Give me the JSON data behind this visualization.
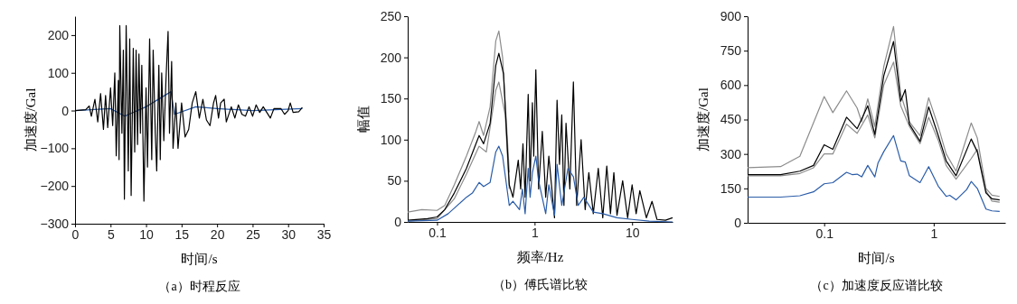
{
  "chart_data": [
    {
      "type": "line",
      "title": "（a）时程反应",
      "xlabel": "时间/s",
      "ylabel": "加速度/Gal",
      "xlim": [
        0,
        35
      ],
      "xticks": [
        0,
        5,
        10,
        15,
        20,
        25,
        30,
        35
      ],
      "ylim": [
        -300,
        250
      ],
      "yticks": [
        {
          "value": -300,
          "label": "−300"
        },
        {
          "value": -200,
          "label": "−200"
        },
        {
          "value": -100,
          "label": "−100"
        },
        0,
        100,
        200
      ],
      "grid": false,
      "series": [
        {
          "color": "#2a5ca8",
          "x": [
            0,
            5,
            7,
            10,
            13.5,
            14,
            17,
            20,
            25,
            32
          ],
          "values": [
            0,
            5,
            -15,
            10,
            50,
            -10,
            10,
            5,
            0,
            5
          ]
        },
        {
          "color": "#000000",
          "x": [
            0,
            1.5,
            2,
            2.3,
            2.8,
            3.2,
            3.6,
            4,
            4.3,
            4.6,
            5,
            5.3,
            5.6,
            5.8,
            6.1,
            6.2,
            6.3,
            6.6,
            6.8,
            6.95,
            7.2,
            7.5,
            7.7,
            7.9,
            8.2,
            8.4,
            8.6,
            8.8,
            9.0,
            9.2,
            9.4,
            9.7,
            10.0,
            10.2,
            10.5,
            10.8,
            11.0,
            11.3,
            11.5,
            11.8,
            12.0,
            12.2,
            12.5,
            12.8,
            13.1,
            13.3,
            13.6,
            13.8,
            14.2,
            14.5,
            15,
            15.5,
            16,
            16.5,
            17,
            17.5,
            18,
            18.5,
            19,
            19.5,
            19.8,
            20.2,
            20.5,
            21,
            21.3,
            22,
            22.5,
            23,
            23.5,
            24,
            24.5,
            25,
            25.5,
            26,
            26.5,
            27,
            27.5,
            28,
            29,
            29.5,
            30,
            30.3,
            30.7,
            31.5,
            32
          ],
          "values": [
            0,
            2,
            12,
            -15,
            30,
            -30,
            45,
            -50,
            40,
            -45,
            60,
            -40,
            100,
            -120,
            80,
            -130,
            225,
            -60,
            160,
            -235,
            225,
            -160,
            190,
            -225,
            165,
            -110,
            160,
            -90,
            150,
            -60,
            120,
            -240,
            60,
            -150,
            190,
            -130,
            160,
            -60,
            -160,
            120,
            -130,
            100,
            -80,
            80,
            210,
            -60,
            130,
            -100,
            20,
            -100,
            20,
            -70,
            -50,
            20,
            50,
            -20,
            30,
            -25,
            -40,
            20,
            40,
            -20,
            20,
            30,
            -30,
            10,
            -20,
            15,
            -10,
            -15,
            10,
            -15,
            15,
            -5,
            10,
            -5,
            -20,
            5,
            5,
            -10,
            0,
            20,
            -5,
            -3,
            8
          ]
        }
      ]
    },
    {
      "type": "line",
      "title": "（b）傅氏谱比较",
      "xlabel": "频率/Hz",
      "ylabel": "幅值",
      "log": "x",
      "xlim": [
        0.05,
        26
      ],
      "xticks": [
        0.1,
        1,
        10
      ],
      "ylim": [
        0,
        250
      ],
      "yticks": [
        0,
        50,
        100,
        150,
        200,
        250
      ],
      "grid": false,
      "series": [
        {
          "color": "#8c8c8c",
          "x": [
            0.05,
            0.07,
            0.1,
            0.12,
            0.15,
            0.2,
            0.25,
            0.27,
            0.3,
            0.35,
            0.4,
            0.43,
            0.47,
            0.55
          ],
          "values": [
            12,
            15,
            14,
            20,
            45,
            80,
            110,
            122,
            105,
            140,
            220,
            232,
            200,
            60
          ]
        },
        {
          "color": "#8c8c8c",
          "x": [
            0.05,
            0.1,
            0.15,
            0.2,
            0.27,
            0.32,
            0.4,
            0.43,
            0.5,
            0.55
          ],
          "values": [
            1,
            4,
            28,
            58,
            92,
            85,
            160,
            170,
            130,
            40
          ]
        },
        {
          "color": "#000000",
          "x": [
            0.05,
            0.08,
            0.1,
            0.12,
            0.15,
            0.2,
            0.27,
            0.3,
            0.35,
            0.4,
            0.43,
            0.48,
            0.55,
            0.6,
            0.68,
            0.72,
            0.76,
            0.8,
            0.86,
            0.9,
            0.95,
            0.98,
            1.03,
            1.1,
            1.2,
            1.3,
            1.4,
            1.6,
            1.7,
            1.8,
            1.9,
            2.0,
            2.1,
            2.3,
            2.5,
            2.7,
            3.0,
            3.3,
            3.6,
            4,
            4.5,
            5,
            5.5,
            6,
            6.5,
            7,
            8,
            9,
            10,
            11,
            12,
            14,
            16,
            18,
            22,
            26
          ],
          "values": [
            2,
            4,
            6,
            15,
            35,
            65,
            105,
            95,
            120,
            190,
            205,
            180,
            45,
            30,
            75,
            40,
            95,
            30,
            155,
            50,
            145,
            80,
            185,
            40,
            110,
            30,
            80,
            5,
            148,
            70,
            130,
            20,
            120,
            40,
            170,
            20,
            100,
            15,
            60,
            10,
            65,
            5,
            68,
            10,
            60,
            8,
            50,
            5,
            45,
            10,
            38,
            5,
            25,
            3,
            2,
            5
          ]
        },
        {
          "color": "#2a5ca8",
          "x": [
            0.05,
            0.1,
            0.13,
            0.2,
            0.23,
            0.27,
            0.3,
            0.35,
            0.4,
            0.43,
            0.47,
            0.55,
            0.6,
            0.7,
            0.75,
            0.8,
            0.86,
            0.9,
            0.95,
            1.03,
            1.1,
            1.3,
            1.4,
            1.6,
            1.7,
            1.9,
            2.2,
            2.5,
            2.8,
            3.2,
            4,
            5,
            7,
            10,
            15,
            26
          ],
          "values": [
            1,
            2,
            10,
            30,
            35,
            48,
            43,
            48,
            85,
            92,
            80,
            20,
            25,
            15,
            40,
            10,
            65,
            30,
            60,
            80,
            50,
            10,
            45,
            8,
            70,
            20,
            65,
            55,
            20,
            30,
            12,
            10,
            5,
            3,
            1,
            0
          ]
        }
      ]
    },
    {
      "type": "line",
      "title": "（c）加速度反应谱比较",
      "xlabel": "时间/s",
      "ylabel": "加速度/Gal",
      "log": "x",
      "xlim": [
        0.02,
        4.5
      ],
      "xticks": [
        0.1,
        1
      ],
      "ylim": [
        0,
        900
      ],
      "yticks": [
        0,
        150,
        300,
        450,
        600,
        750,
        900
      ],
      "grid": false,
      "series": [
        {
          "color": "#8c8c8c",
          "x": [
            0.02,
            0.04,
            0.06,
            0.1,
            0.12,
            0.16,
            0.2,
            0.22,
            0.25,
            0.29,
            0.35,
            0.43,
            0.5,
            0.6,
            0.75,
            0.9,
            1.1,
            1.3,
            1.6,
            2.2,
            2.5,
            3.0,
            3.4,
            4
          ],
          "values": [
            240,
            245,
            290,
            550,
            480,
            575,
            500,
            440,
            540,
            420,
            680,
            855,
            560,
            440,
            380,
            545,
            420,
            300,
            225,
            435,
            370,
            150,
            120,
            115
          ]
        },
        {
          "color": "#8c8c8c",
          "x": [
            0.02,
            0.04,
            0.06,
            0.08,
            0.1,
            0.12,
            0.16,
            0.2,
            0.25,
            0.29,
            0.35,
            0.43,
            0.5,
            0.6,
            0.75,
            0.9,
            1.1,
            1.3,
            1.6,
            2.2,
            2.5,
            3.0,
            3.4,
            4
          ],
          "values": [
            205,
            205,
            215,
            240,
            300,
            300,
            430,
            390,
            470,
            370,
            600,
            700,
            510,
            420,
            345,
            460,
            360,
            250,
            190,
            280,
            320,
            140,
            95,
            90
          ]
        },
        {
          "color": "#000000",
          "x": [
            0.02,
            0.04,
            0.06,
            0.08,
            0.1,
            0.12,
            0.16,
            0.2,
            0.25,
            0.29,
            0.35,
            0.43,
            0.5,
            0.55,
            0.6,
            0.75,
            0.9,
            1.1,
            1.3,
            1.6,
            2.2,
            2.5,
            3.0,
            3.4,
            4
          ],
          "values": [
            210,
            210,
            225,
            250,
            340,
            320,
            460,
            410,
            510,
            385,
            640,
            790,
            530,
            580,
            430,
            355,
            505,
            380,
            270,
            205,
            365,
            310,
            130,
            105,
            100
          ]
        },
        {
          "color": "#2a5ca8",
          "x": [
            0.02,
            0.04,
            0.06,
            0.08,
            0.1,
            0.12,
            0.16,
            0.18,
            0.2,
            0.22,
            0.25,
            0.29,
            0.31,
            0.35,
            0.43,
            0.5,
            0.55,
            0.6,
            0.75,
            0.9,
            1.1,
            1.3,
            1.4,
            1.6,
            2.0,
            2.2,
            2.5,
            3.0,
            3.4,
            4
          ],
          "values": [
            112,
            112,
            118,
            135,
            170,
            175,
            220,
            210,
            212,
            200,
            250,
            200,
            260,
            310,
            380,
            270,
            265,
            205,
            175,
            245,
            160,
            115,
            120,
            100,
            145,
            180,
            150,
            60,
            52,
            50
          ]
        }
      ]
    }
  ]
}
